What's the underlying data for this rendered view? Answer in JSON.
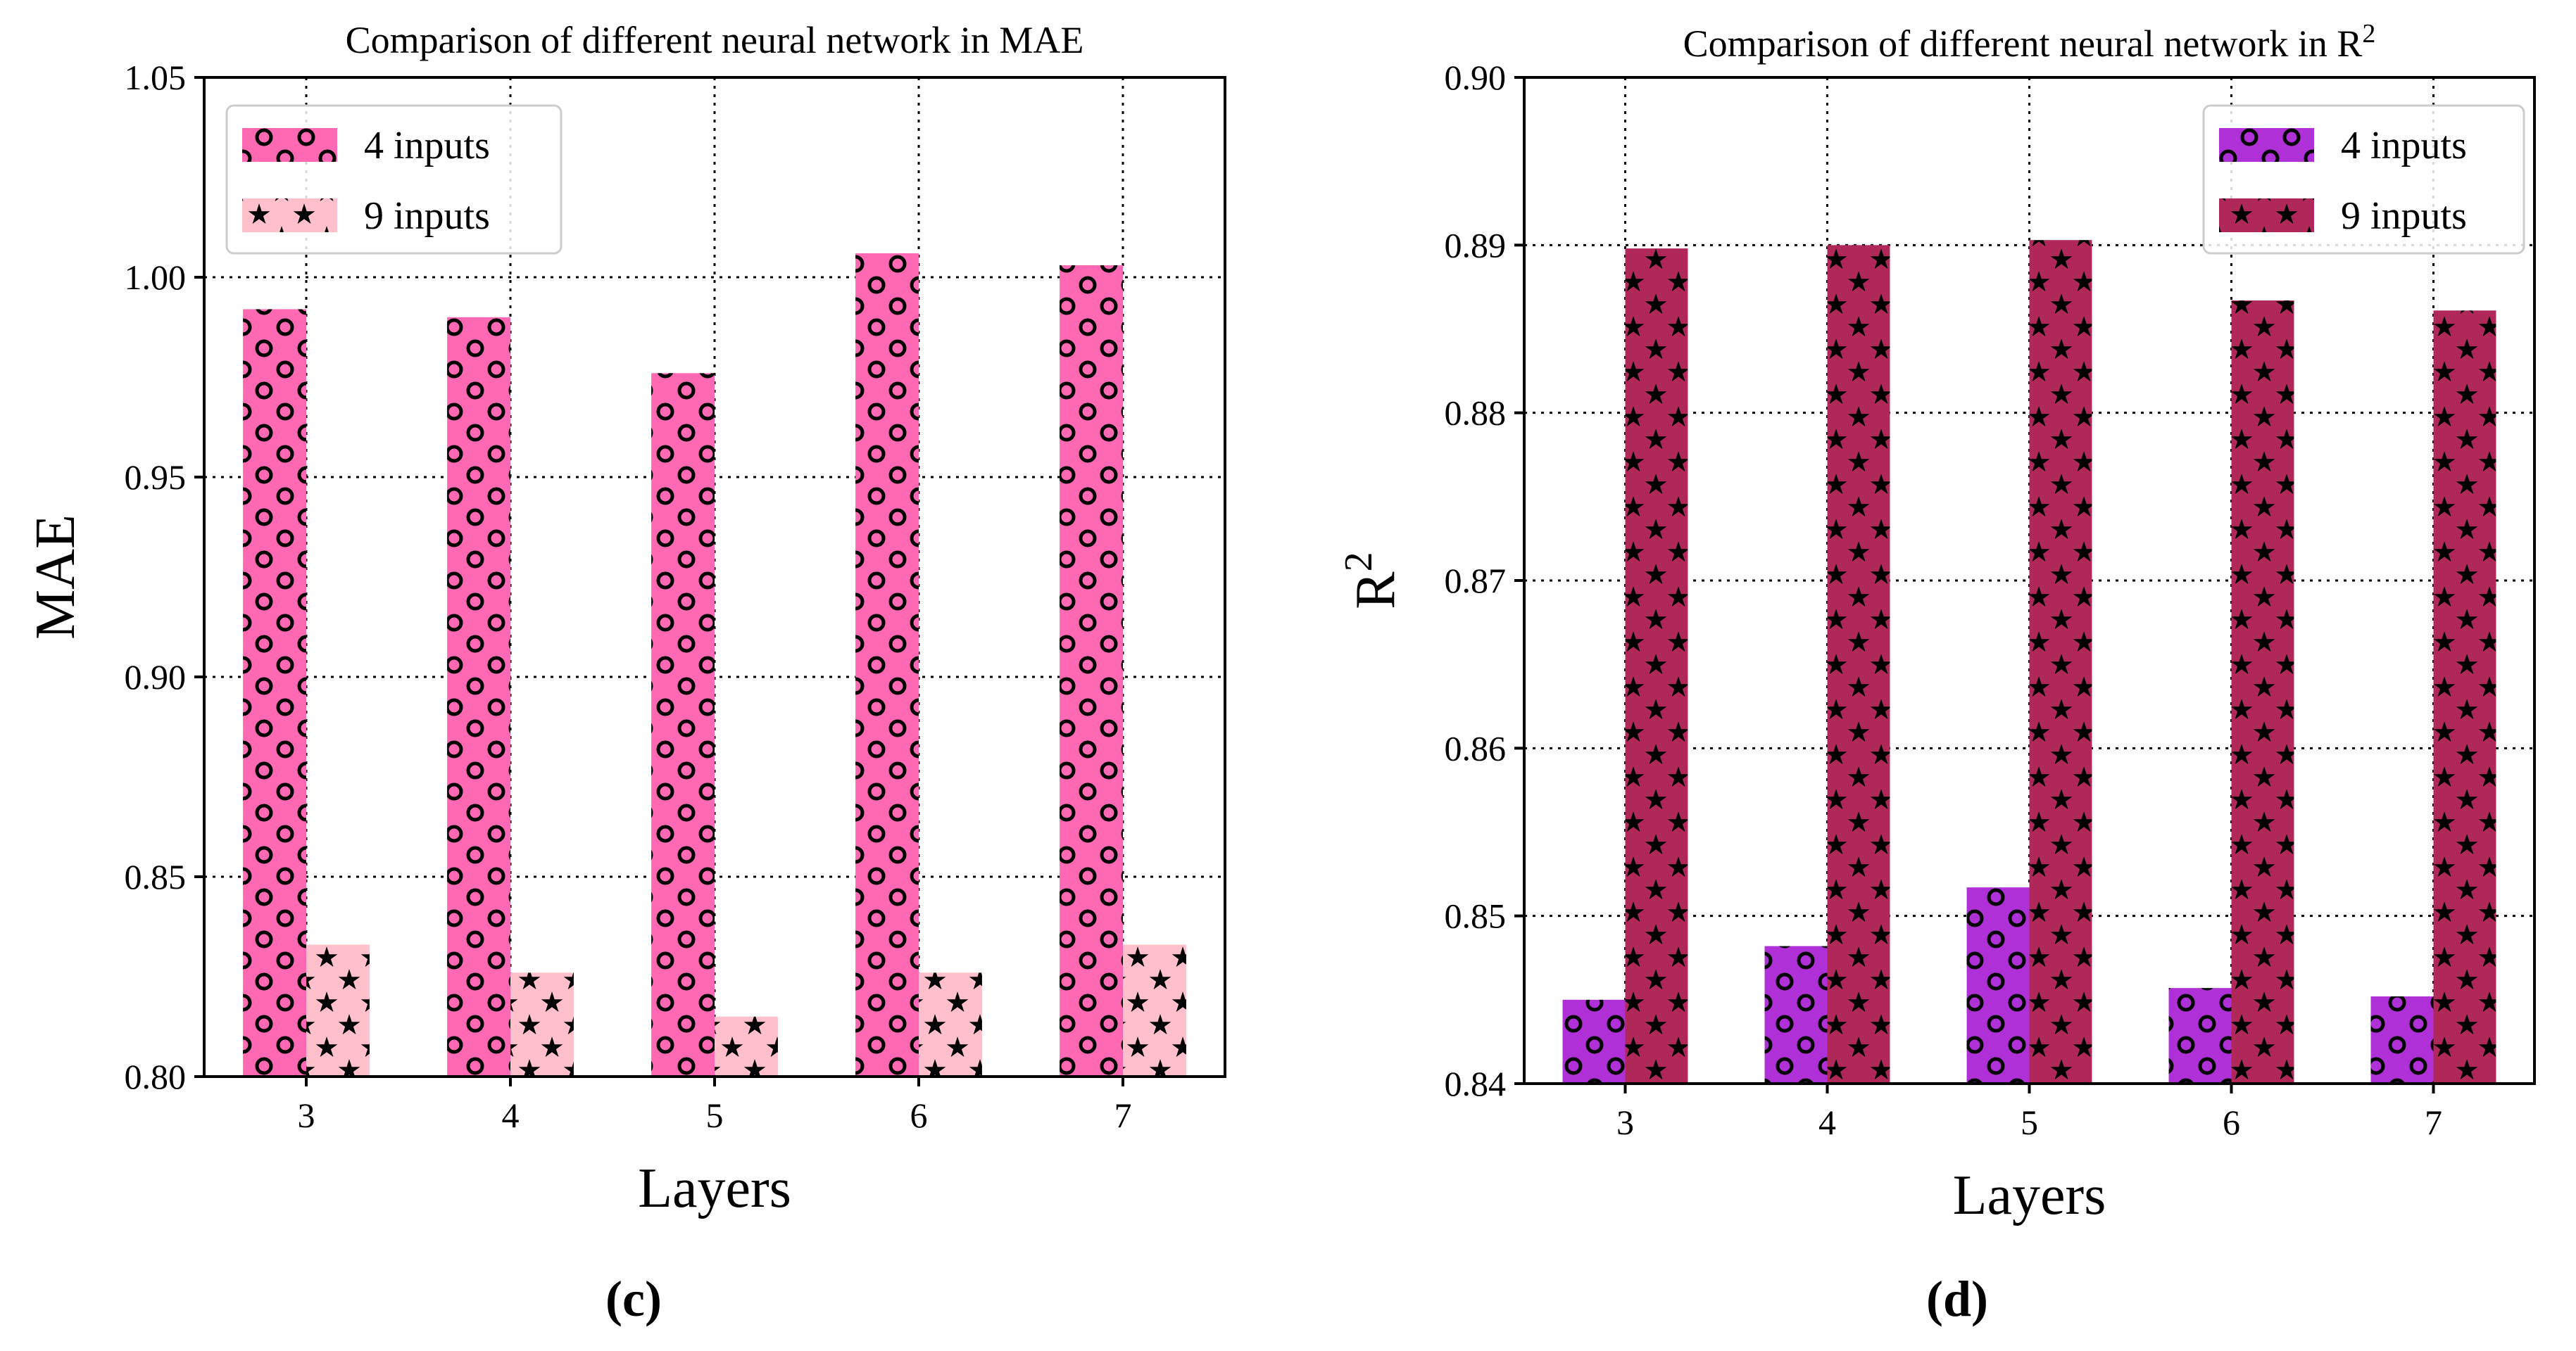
{
  "chart_data": [
    {
      "type": "bar",
      "title": "Comparison of different neural network in MAE",
      "xlabel": "Layers",
      "ylabel": "MAE",
      "panel_label": "(c)",
      "categories": [
        "3",
        "4",
        "5",
        "6",
        "7"
      ],
      "ylim": [
        0.8,
        1.05
      ],
      "yticks": [
        0.8,
        0.85,
        0.9,
        0.95,
        1.0,
        1.05
      ],
      "ytick_labels": [
        "0.80",
        "0.85",
        "0.90",
        "0.95",
        "1.00",
        "1.05"
      ],
      "grid": true,
      "legend_position": "top-left",
      "series": [
        {
          "name": "4 inputs",
          "values": [
            0.992,
            0.99,
            0.976,
            1.006,
            1.003
          ],
          "color": "#ff69b4",
          "hatch": "circles"
        },
        {
          "name": "9 inputs",
          "values": [
            0.833,
            0.826,
            0.815,
            0.826,
            0.833
          ],
          "color": "#ffc0cb",
          "hatch": "stars"
        }
      ]
    },
    {
      "type": "bar",
      "title": "Comparison of different neural network in R",
      "title_superscript": "2",
      "xlabel": "Layers",
      "ylabel": "R",
      "ylabel_superscript": "2",
      "panel_label": "(d)",
      "categories": [
        "3",
        "4",
        "5",
        "6",
        "7"
      ],
      "ylim": [
        0.84,
        0.9
      ],
      "yticks": [
        0.84,
        0.85,
        0.86,
        0.87,
        0.88,
        0.89,
        0.9
      ],
      "ytick_labels": [
        "0.84",
        "0.85",
        "0.86",
        "0.87",
        "0.88",
        "0.89",
        "0.90"
      ],
      "grid": true,
      "legend_position": "top-right",
      "series": [
        {
          "name": "4 inputs",
          "values": [
            0.845,
            0.8482,
            0.8517,
            0.8457,
            0.8452
          ],
          "color": "#b030d8",
          "hatch": "circles"
        },
        {
          "name": "9 inputs",
          "values": [
            0.8898,
            0.89,
            0.8903,
            0.8867,
            0.8861
          ],
          "color": "#b0285a",
          "hatch": "stars"
        }
      ]
    }
  ]
}
